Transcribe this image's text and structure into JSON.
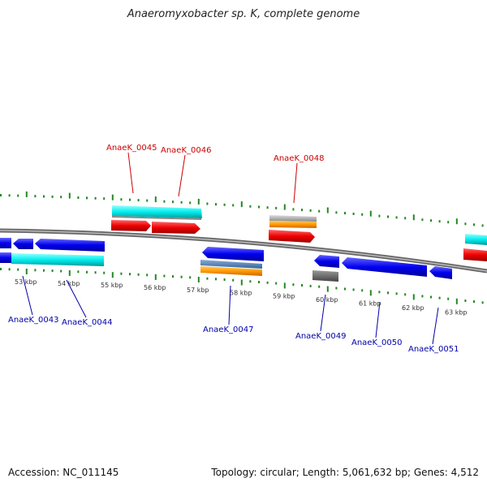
{
  "title": "Anaeromyxobacter sp. K, complete genome",
  "footer": {
    "accession": "Accession: NC_011145",
    "stats": "Topology: circular; Length: 5,061,632 bp; Genes: 4,512"
  },
  "ticks": [
    "53 kbp",
    "54 kbp",
    "55 kbp",
    "56 kbp",
    "57 kbp",
    "58 kbp",
    "59 kbp",
    "60 kbp",
    "61 kbp",
    "62 kbp",
    "63 kbp"
  ],
  "gene_labels_top": [
    "AnaeK_0045",
    "AnaeK_0046",
    "AnaeK_0048"
  ],
  "gene_labels_bottom": [
    "AnaeK_0043",
    "AnaeK_0044",
    "AnaeK_0047",
    "AnaeK_0049",
    "AnaeK_0050",
    "AnaeK_0051"
  ],
  "colors": {
    "cds": "#0000ee",
    "cds_forward": "#ee0000",
    "trna": "#00eeee",
    "gene_other": "#ee8800",
    "misc": "#999999",
    "backbone": "#888888",
    "ticks": "#228822"
  }
}
